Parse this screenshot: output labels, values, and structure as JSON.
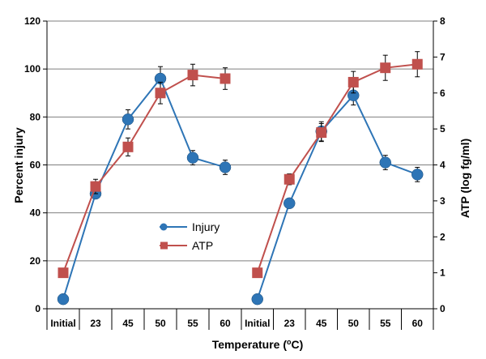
{
  "chart_data": {
    "type": "line",
    "categories": [
      "Initial",
      "23",
      "45",
      "50",
      "55",
      "60"
    ],
    "xlabel_prefix": "Temperature (",
    "xlabel_superscript": "o",
    "xlabel_suffix": "C)",
    "ylabel": "Percent injury",
    "y2label": "ATP (log fg/ml)",
    "ylim": [
      0,
      120
    ],
    "yticks": [
      0,
      20,
      40,
      60,
      80,
      100,
      120
    ],
    "y2lim": [
      0,
      8
    ],
    "y2ticks": [
      0,
      1,
      2,
      3,
      4,
      5,
      6,
      7,
      8
    ],
    "grid": "horizontal",
    "legend_position": "center-bottom",
    "panels": [
      {
        "series": [
          {
            "name": "Injury",
            "axis": "left",
            "color": "#2E75B6",
            "marker": "circle",
            "values": [
              4,
              48,
              79,
              96,
              63,
              59
            ],
            "errors": [
              0,
              0,
              4,
              5,
              3,
              3
            ]
          },
          {
            "name": "ATP",
            "axis": "right",
            "color": "#C0504D",
            "marker": "square",
            "values": [
              1.0,
              3.4,
              4.5,
              6.0,
              6.5,
              6.4
            ],
            "errors": [
              0,
              0.2,
              0.25,
              0.3,
              0.3,
              0.3
            ]
          }
        ]
      },
      {
        "series": [
          {
            "name": "Injury",
            "axis": "left",
            "color": "#2E75B6",
            "marker": "circle",
            "values": [
              4,
              44,
              74,
              89,
              61,
              56
            ],
            "errors": [
              0,
              0,
              4,
              4,
              3,
              3
            ]
          },
          {
            "name": "ATP",
            "axis": "right",
            "color": "#C0504D",
            "marker": "square",
            "values": [
              1.0,
              3.6,
              4.9,
              6.3,
              6.7,
              6.8
            ],
            "errors": [
              0,
              0.15,
              0.25,
              0.3,
              0.35,
              0.35
            ]
          }
        ]
      }
    ],
    "legend": [
      {
        "name": "Injury",
        "color": "#2E75B6",
        "marker": "circle"
      },
      {
        "name": "ATP",
        "color": "#C0504D",
        "marker": "square"
      }
    ]
  }
}
